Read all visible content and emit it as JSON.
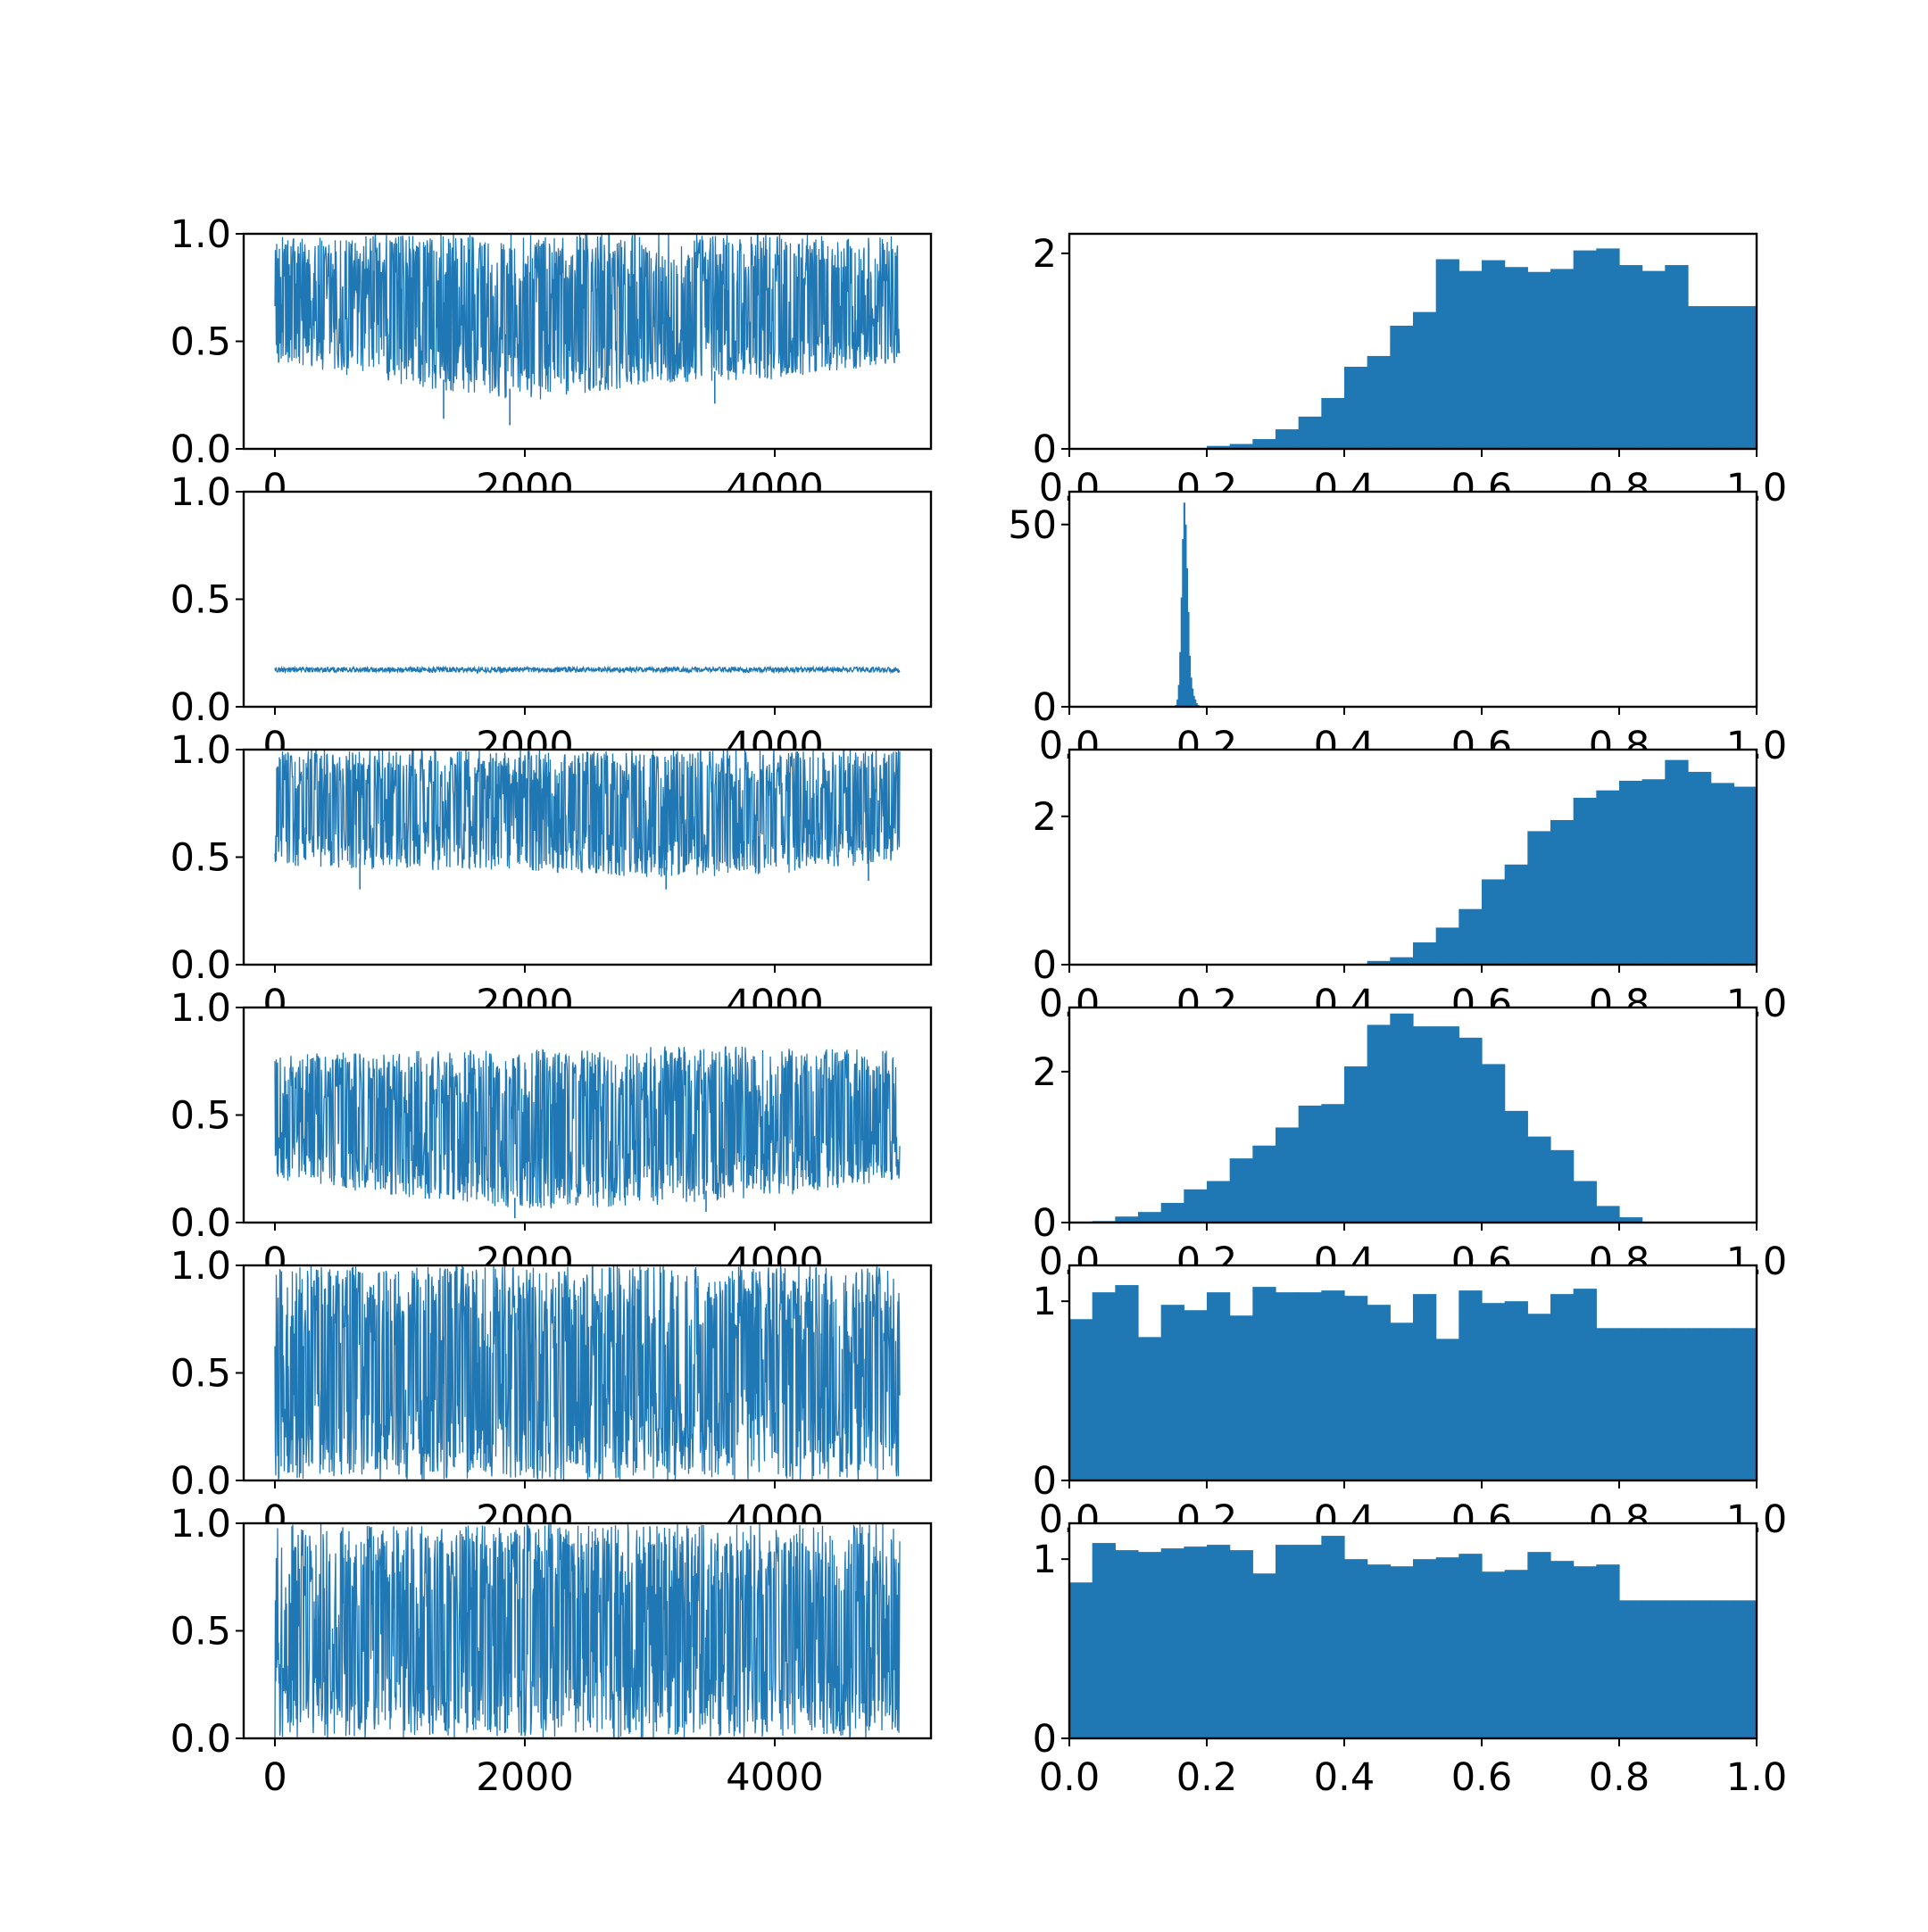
{
  "figure": {
    "background": "#ffffff",
    "series_color": "#1f77b4"
  },
  "chart_data": [
    {
      "type": "line",
      "panel": "trace-1",
      "title": "",
      "xlabel": "",
      "ylabel": "",
      "xlim": [
        -250,
        5250
      ],
      "ylim": [
        0,
        1
      ],
      "xticks": [
        0,
        2000,
        4000
      ],
      "xtick_labels": [
        "0",
        "2000",
        "4000"
      ],
      "yticks": [
        0,
        0.5,
        1
      ],
      "ytick_labels": [
        "0.0",
        "0.5",
        "1.0"
      ],
      "n_samples": 5000,
      "band": {
        "x": [
          0,
          1000,
          2000,
          3000,
          4000,
          5000
        ],
        "low": [
          0.4,
          0.3,
          0.22,
          0.3,
          0.32,
          0.4
        ],
        "high": [
          0.99,
          1.0,
          1.0,
          1.0,
          1.0,
          0.99
        ]
      },
      "dips": [
        {
          "x": 1350,
          "y": 0.14
        },
        {
          "x": 1880,
          "y": 0.11
        },
        {
          "x": 3520,
          "y": 0.21
        },
        {
          "x": 2600,
          "y": 0.27
        }
      ]
    },
    {
      "type": "bar",
      "panel": "hist-1",
      "title": "",
      "xlabel": "",
      "ylabel": "",
      "xlim": [
        0,
        1
      ],
      "ylim": [
        0,
        2.2
      ],
      "xticks": [
        0,
        0.2,
        0.4,
        0.6,
        0.8,
        1.0
      ],
      "xtick_labels": [
        "0.0",
        "0.2",
        "0.4",
        "0.6",
        "0.8",
        "1.0"
      ],
      "yticks": [
        0,
        2
      ],
      "ytick_labels": [
        "0",
        "2"
      ],
      "bin_range": [
        0.0,
        1.0
      ],
      "values": [
        0,
        0,
        0,
        0,
        0,
        0.005,
        0.03,
        0.05,
        0.1,
        0.2,
        0.33,
        0.52,
        0.84,
        0.95,
        1.26,
        1.4,
        1.94,
        1.82,
        1.93,
        1.86,
        1.81,
        1.84,
        2.03,
        2.05,
        1.88,
        1.82,
        1.88,
        1.46,
        1.46,
        1.46
      ]
    },
    {
      "type": "line",
      "panel": "trace-2",
      "title": "",
      "xlabel": "",
      "ylabel": "",
      "xlim": [
        -250,
        5250
      ],
      "ylim": [
        0,
        1
      ],
      "xticks": [
        0,
        2000,
        4000
      ],
      "xtick_labels": [
        "0",
        "2000",
        "4000"
      ],
      "yticks": [
        0,
        0.5,
        1
      ],
      "ytick_labels": [
        "0.0",
        "0.5",
        "1.0"
      ],
      "n_samples": 5000,
      "band": {
        "x": [
          0,
          5000
        ],
        "low": [
          0.16,
          0.16
        ],
        "high": [
          0.185,
          0.185
        ]
      },
      "dips": []
    },
    {
      "type": "bar",
      "panel": "hist-2",
      "title": "",
      "xlabel": "",
      "ylabel": "",
      "xlim": [
        0,
        1
      ],
      "ylim": [
        0,
        59
      ],
      "xticks": [
        0,
        0.2,
        0.4,
        0.6,
        0.8,
        1.0
      ],
      "xtick_labels": [
        "0.0",
        "0.2",
        "0.4",
        "0.6",
        "0.8",
        "1.0"
      ],
      "yticks": [
        0,
        50
      ],
      "ytick_labels": [
        "0",
        "50"
      ],
      "bin_range": [
        0.154,
        0.194
      ],
      "values": [
        0.5,
        2,
        6,
        15,
        30,
        46,
        56,
        50,
        38,
        26,
        14,
        8,
        5,
        3,
        2,
        1,
        0.5,
        0.3,
        0.2,
        0.1
      ]
    },
    {
      "type": "line",
      "panel": "trace-3",
      "title": "",
      "xlabel": "",
      "ylabel": "",
      "xlim": [
        -250,
        5250
      ],
      "ylim": [
        0,
        1
      ],
      "xticks": [
        0,
        2000,
        4000
      ],
      "xtick_labels": [
        "0",
        "2000",
        "4000"
      ],
      "yticks": [
        0,
        0.5,
        1
      ],
      "ytick_labels": [
        "0.0",
        "0.5",
        "1.0"
      ],
      "n_samples": 5000,
      "band": {
        "x": [
          0,
          1000,
          2000,
          3000,
          4000,
          5000
        ],
        "low": [
          0.46,
          0.44,
          0.44,
          0.4,
          0.42,
          0.48
        ],
        "high": [
          1.0,
          1.0,
          1.0,
          1.0,
          1.0,
          1.0
        ]
      },
      "dips": [
        {
          "x": 680,
          "y": 0.35
        },
        {
          "x": 3130,
          "y": 0.35
        },
        {
          "x": 4750,
          "y": 0.39
        }
      ]
    },
    {
      "type": "bar",
      "panel": "hist-3",
      "title": "",
      "xlabel": "",
      "ylabel": "",
      "xlim": [
        0,
        1
      ],
      "ylim": [
        0,
        2.9
      ],
      "xticks": [
        0,
        0.2,
        0.4,
        0.6,
        0.8,
        1.0
      ],
      "xtick_labels": [
        "0.0",
        "0.2",
        "0.4",
        "0.6",
        "0.8",
        "1.0"
      ],
      "yticks": [
        0,
        2
      ],
      "ytick_labels": [
        "0",
        "2"
      ],
      "bin_range": [
        0.0,
        1.0
      ],
      "values": [
        0,
        0,
        0,
        0,
        0,
        0,
        0,
        0,
        0,
        0,
        0,
        0,
        0,
        0.05,
        0.1,
        0.3,
        0.5,
        0.75,
        1.15,
        1.35,
        1.8,
        1.95,
        2.25,
        2.35,
        2.48,
        2.5,
        2.76,
        2.6,
        2.45,
        2.4
      ]
    },
    {
      "type": "line",
      "panel": "trace-4",
      "title": "",
      "xlabel": "",
      "ylabel": "",
      "xlim": [
        -250,
        5250
      ],
      "ylim": [
        0,
        1
      ],
      "xticks": [
        0,
        2000,
        4000
      ],
      "xtick_labels": [
        "0",
        "2000",
        "4000"
      ],
      "yticks": [
        0,
        0.5,
        1
      ],
      "ytick_labels": [
        "0.0",
        "0.5",
        "1.0"
      ],
      "n_samples": 5000,
      "band": {
        "x": [
          0,
          1000,
          2000,
          3000,
          4000,
          5000
        ],
        "low": [
          0.2,
          0.12,
          0.06,
          0.08,
          0.12,
          0.2
        ],
        "high": [
          0.78,
          0.8,
          0.8,
          0.82,
          0.82,
          0.8
        ]
      },
      "dips": [
        {
          "x": 1920,
          "y": 0.02
        },
        {
          "x": 2410,
          "y": 0.08
        },
        {
          "x": 3450,
          "y": 0.05
        }
      ]
    },
    {
      "type": "bar",
      "panel": "hist-4",
      "title": "",
      "xlabel": "",
      "ylabel": "",
      "xlim": [
        0,
        1
      ],
      "ylim": [
        0,
        2.85
      ],
      "xticks": [
        0,
        0.2,
        0.4,
        0.6,
        0.8,
        1.0
      ],
      "xtick_labels": [
        "0.0",
        "0.2",
        "0.4",
        "0.6",
        "0.8",
        "1.0"
      ],
      "yticks": [
        0,
        2
      ],
      "ytick_labels": [
        "0",
        "2"
      ],
      "bin_range": [
        0.0,
        1.0
      ],
      "values": [
        0,
        0.02,
        0.08,
        0.14,
        0.26,
        0.44,
        0.55,
        0.85,
        1.02,
        1.26,
        1.55,
        1.57,
        2.07,
        2.62,
        2.77,
        2.6,
        2.6,
        2.45,
        2.1,
        1.48,
        1.14,
        0.96,
        0.55,
        0.22,
        0.07,
        0.01,
        0,
        0,
        0,
        0
      ]
    },
    {
      "type": "line",
      "panel": "trace-5",
      "title": "",
      "xlabel": "",
      "ylabel": "",
      "xlim": [
        -250,
        5250
      ],
      "ylim": [
        0,
        1
      ],
      "xticks": [
        0,
        2000,
        4000
      ],
      "xtick_labels": [
        "0",
        "2000",
        "4000"
      ],
      "yticks": [
        0,
        0.5,
        1
      ],
      "ytick_labels": [
        "0.0",
        "0.5",
        "1.0"
      ],
      "n_samples": 5000,
      "band": {
        "x": [
          0,
          5000
        ],
        "low": [
          0.0,
          0.0
        ],
        "high": [
          1.0,
          1.0
        ]
      },
      "dips": []
    },
    {
      "type": "bar",
      "panel": "hist-5",
      "title": "",
      "xlabel": "",
      "ylabel": "",
      "xlim": [
        0,
        1
      ],
      "ylim": [
        0,
        1.2
      ],
      "xticks": [
        0,
        0.2,
        0.4,
        0.6,
        0.8,
        1.0
      ],
      "xtick_labels": [
        "0.0",
        "0.2",
        "0.4",
        "0.6",
        "0.8",
        "1.0"
      ],
      "yticks": [
        0,
        1
      ],
      "ytick_labels": [
        "0",
        "1"
      ],
      "bin_range": [
        0.0,
        1.0
      ],
      "values": [
        0.9,
        1.05,
        1.09,
        0.8,
        0.98,
        0.95,
        1.05,
        0.92,
        1.08,
        1.05,
        1.05,
        1.06,
        1.03,
        0.98,
        0.88,
        1.04,
        0.79,
        1.06,
        0.99,
        1.0,
        0.93,
        1.04,
        1.07,
        0.85,
        0.85,
        0.85,
        0.85,
        0.85,
        0.85,
        0.85
      ]
    },
    {
      "type": "line",
      "panel": "trace-6",
      "title": "",
      "xlabel": "",
      "ylabel": "",
      "xlim": [
        -250,
        5250
      ],
      "ylim": [
        0,
        1
      ],
      "xticks": [
        0,
        2000,
        4000
      ],
      "xtick_labels": [
        "0",
        "2000",
        "4000"
      ],
      "yticks": [
        0,
        0.5,
        1
      ],
      "ytick_labels": [
        "0.0",
        "0.5",
        "1.0"
      ],
      "n_samples": 5000,
      "band": {
        "x": [
          0,
          5000
        ],
        "low": [
          0.0,
          0.0
        ],
        "high": [
          1.0,
          1.0
        ]
      },
      "dips": []
    },
    {
      "type": "bar",
      "panel": "hist-6",
      "title": "",
      "xlabel": "",
      "ylabel": "",
      "xlim": [
        0,
        1
      ],
      "ylim": [
        0,
        1.2
      ],
      "xticks": [
        0,
        0.2,
        0.4,
        0.6,
        0.8,
        1.0
      ],
      "xtick_labels": [
        "0.0",
        "0.2",
        "0.4",
        "0.6",
        "0.8",
        "1.0"
      ],
      "yticks": [
        0,
        1
      ],
      "ytick_labels": [
        "0",
        "1"
      ],
      "bin_range": [
        0.0,
        1.0
      ],
      "values": [
        0.87,
        1.09,
        1.05,
        1.04,
        1.06,
        1.07,
        1.08,
        1.05,
        0.92,
        1.08,
        1.08,
        1.13,
        1.0,
        0.97,
        0.96,
        1.0,
        1.01,
        1.03,
        0.93,
        0.94,
        1.04,
        0.99,
        0.96,
        0.97,
        0.77,
        0.77,
        0.77,
        0.77,
        0.77,
        0.77
      ]
    }
  ]
}
